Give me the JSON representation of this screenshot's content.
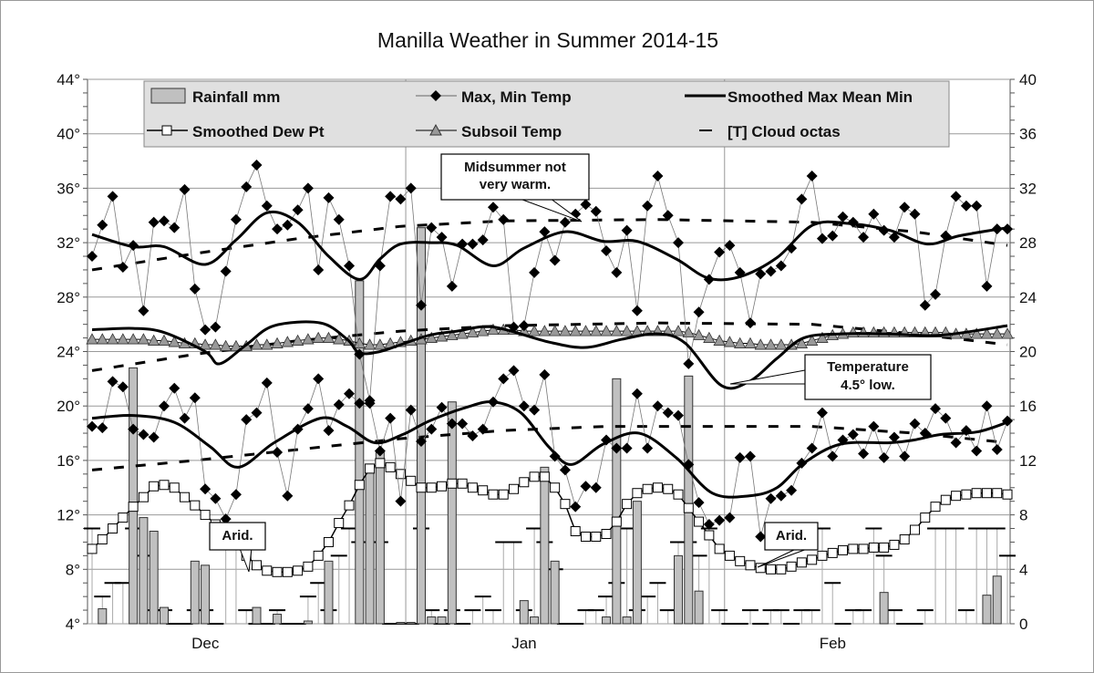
{
  "chart_data": {
    "type": "line",
    "title": "Manilla Weather in Summer 2014-15",
    "x_months": [
      "Dec",
      "Jan",
      "Feb"
    ],
    "days": 90,
    "left_axis": {
      "unit": "°",
      "range": [
        4,
        44
      ],
      "ticks": [
        4,
        8,
        12,
        16,
        20,
        24,
        28,
        32,
        36,
        40,
        44
      ]
    },
    "right_axis": {
      "range": [
        0,
        40
      ],
      "ticks": [
        0,
        4,
        8,
        12,
        16,
        20,
        24,
        28,
        32,
        36,
        40
      ]
    },
    "grid": true,
    "legend_position": "top",
    "legend": [
      "Rainfall mm",
      "Max, Min Temp",
      "Smoothed  Max Mean Min",
      "Smoothed Dew Pt",
      "Subsoil Temp",
      "[T] Cloud octas"
    ],
    "max_temp": [
      31,
      33.3,
      35.4,
      30.2,
      31.8,
      27,
      33.5,
      33.6,
      33.1,
      35.9,
      28.6,
      25.6,
      25.8,
      29.9,
      33.7,
      36.1,
      37.7,
      34.7,
      33,
      33.3,
      34.4,
      36,
      30,
      35.3,
      33.7,
      30.3,
      23.8,
      20.4,
      30.3,
      35.4,
      35.2,
      36,
      27.4,
      33.1,
      32.4,
      28.8,
      31.9,
      31.9,
      32.2,
      34.6,
      33.7,
      25.8,
      25.9,
      29.8,
      32.8,
      30.7,
      33.5,
      34.1,
      34.8,
      34.3,
      31.4,
      29.8,
      32.9,
      27,
      34.7,
      36.9,
      34,
      32,
      23.1,
      26.9,
      29.3,
      31.3,
      31.8,
      29.8,
      26.1,
      29.7,
      29.9,
      30.3,
      31.6,
      35.2,
      36.9,
      32.3,
      32.5,
      33.9,
      33.5,
      32.4,
      34.1,
      32.9,
      32.4,
      34.6,
      34.1,
      27.4,
      28.2,
      32.5,
      35.4,
      34.7,
      34.7,
      28.8,
      33,
      33
    ],
    "min_temp": [
      18.5,
      18.4,
      21.8,
      21.4,
      18.3,
      17.9,
      17.7,
      20,
      21.3,
      19.1,
      20.6,
      13.9,
      13.2,
      11.7,
      13.5,
      19,
      19.5,
      21.7,
      16.6,
      13.4,
      18.3,
      19.8,
      22,
      18.2,
      20.1,
      20.9,
      20.2,
      20.2,
      16.7,
      19.1,
      13,
      19.7,
      17.4,
      18.3,
      19.9,
      18.7,
      18.7,
      17.8,
      18.3,
      20.3,
      22,
      22.6,
      20,
      19.7,
      22.3,
      16.3,
      15.3,
      12.6,
      14.1,
      14,
      17.5,
      16.9,
      16.9,
      20.9,
      16.9,
      20,
      19.5,
      19.3,
      15.7,
      12.9,
      11.3,
      11.6,
      11.8,
      16.2,
      16.3,
      10.4,
      13.2,
      13.4,
      13.8,
      15.8,
      16.9,
      19.5,
      16.3,
      17.5,
      17.9,
      16.5,
      18.5,
      16.2,
      17.7,
      16.3,
      18.7,
      18,
      19.8,
      19.1,
      17.3,
      18.2,
      16.7,
      20,
      16.8,
      18.9
    ],
    "smoothed_max": [
      [
        0,
        32.6
      ],
      [
        4,
        31.7
      ],
      [
        7,
        31.7
      ],
      [
        11,
        30.4
      ],
      [
        14,
        32.2
      ],
      [
        17,
        34.2
      ],
      [
        20,
        33.5
      ],
      [
        23,
        31
      ],
      [
        26,
        29.3
      ],
      [
        28,
        30.8
      ],
      [
        30,
        31.9
      ],
      [
        33,
        32
      ],
      [
        35.5,
        31.8
      ],
      [
        39,
        30.3
      ],
      [
        42,
        31.6
      ],
      [
        46,
        32.8
      ],
      [
        49.7,
        32.1
      ],
      [
        53,
        32.1
      ],
      [
        56.8,
        30.8
      ],
      [
        59.9,
        29.4
      ],
      [
        63,
        29.5
      ],
      [
        66.6,
        30.9
      ],
      [
        70.1,
        33.3
      ],
      [
        73.7,
        33.4
      ],
      [
        77.6,
        32.9
      ],
      [
        81.2,
        31.9
      ],
      [
        84.3,
        32.5
      ],
      [
        89,
        33.1
      ]
    ],
    "smoothed_mean": [
      [
        0,
        25.6
      ],
      [
        4,
        25.7
      ],
      [
        7,
        25.4
      ],
      [
        11,
        24
      ],
      [
        12.4,
        23.1
      ],
      [
        15,
        24.5
      ],
      [
        17.7,
        25.9
      ],
      [
        22.2,
        26.1
      ],
      [
        24.8,
        24.9
      ],
      [
        26,
        23.9
      ],
      [
        28,
        24
      ],
      [
        30,
        24.5
      ],
      [
        32.8,
        25.2
      ],
      [
        35.5,
        25.5
      ],
      [
        39,
        25.8
      ],
      [
        44.4,
        24.7
      ],
      [
        48,
        24.3
      ],
      [
        51.5,
        24.9
      ],
      [
        55,
        25.3
      ],
      [
        57.7,
        24.6
      ],
      [
        61.2,
        21.5
      ],
      [
        63.9,
        21.8
      ],
      [
        66.6,
        23.5
      ],
      [
        69.2,
        25
      ],
      [
        72.8,
        25.3
      ],
      [
        77.2,
        25.3
      ],
      [
        82.5,
        25.2
      ],
      [
        89,
        25.9
      ]
    ],
    "smoothed_min": [
      [
        0,
        19.1
      ],
      [
        4,
        19.3
      ],
      [
        8,
        18.8
      ],
      [
        11.5,
        17
      ],
      [
        14.2,
        15.5
      ],
      [
        17.7,
        17.3
      ],
      [
        22.2,
        19.1
      ],
      [
        24.8,
        18.5
      ],
      [
        27.5,
        17.3
      ],
      [
        30.2,
        17.9
      ],
      [
        32.8,
        18.9
      ],
      [
        36.4,
        19.9
      ],
      [
        39,
        20.3
      ],
      [
        41.7,
        19.5
      ],
      [
        44.4,
        17
      ],
      [
        46.6,
        15.7
      ],
      [
        49.7,
        17.2
      ],
      [
        53.2,
        18
      ],
      [
        56.8,
        16.2
      ],
      [
        60.3,
        13.6
      ],
      [
        63.9,
        13.4
      ],
      [
        66.6,
        14
      ],
      [
        69.2,
        15.8
      ],
      [
        72.8,
        17.2
      ],
      [
        77.6,
        17.3
      ],
      [
        79.9,
        17.5
      ],
      [
        82.5,
        17.9
      ],
      [
        86.1,
        18.1
      ],
      [
        89,
        18.8
      ]
    ],
    "normal_dashed": [
      [
        [
          0,
          30
        ],
        [
          10,
          31.2
        ],
        [
          20,
          32.3
        ],
        [
          30,
          33.2
        ],
        [
          40,
          33.6
        ],
        [
          55,
          33.7
        ],
        [
          70,
          33.5
        ],
        [
          80,
          32.8
        ],
        [
          89,
          31.8
        ]
      ],
      [
        [
          0,
          22.6
        ],
        [
          10,
          23.8
        ],
        [
          20,
          24.8
        ],
        [
          30,
          25.5
        ],
        [
          40,
          25.9
        ],
        [
          55,
          26.1
        ],
        [
          70,
          26
        ],
        [
          80,
          25.3
        ],
        [
          89,
          24.5
        ]
      ],
      [
        [
          0,
          15.3
        ],
        [
          10,
          16
        ],
        [
          20,
          16.8
        ],
        [
          30,
          17.6
        ],
        [
          40,
          18.2
        ],
        [
          50,
          18.5
        ],
        [
          70,
          18.5
        ],
        [
          80,
          18
        ],
        [
          89,
          17.3
        ]
      ]
    ],
    "dew_point": [
      9.5,
      10.2,
      11,
      11.8,
      12.6,
      13.3,
      14.1,
      14.2,
      14,
      13.3,
      12.7,
      12,
      11.3,
      10.5,
      9.8,
      9,
      8.3,
      7.9,
      7.8,
      7.8,
      7.9,
      8.2,
      9,
      10,
      11.4,
      12.7,
      14.2,
      15.4,
      15.8,
      15.5,
      15,
      14.5,
      14,
      14,
      14.1,
      14.3,
      14.3,
      14,
      13.8,
      13.5,
      13.5,
      13.9,
      14.4,
      14.8,
      14.8,
      14,
      12.8,
      10.8,
      10.4,
      10.4,
      10.6,
      11.5,
      12.8,
      13.6,
      13.9,
      14,
      13.9,
      13.5,
      12.5,
      11.5,
      10.5,
      9.5,
      9,
      8.6,
      8.3,
      8.1,
      8,
      8,
      8.2,
      8.5,
      8.7,
      9,
      9.2,
      9.4,
      9.5,
      9.5,
      9.6,
      9.6,
      9.8,
      10.2,
      10.9,
      11.8,
      12.6,
      13.1,
      13.4,
      13.5,
      13.6,
      13.6,
      13.6,
      13.5
    ],
    "subsoil": [
      24.9,
      24.9,
      24.9,
      24.9,
      24.9,
      24.9,
      24.8,
      24.8,
      24.7,
      24.6,
      24.6,
      24.5,
      24.5,
      24.4,
      24.4,
      24.4,
      24.5,
      24.5,
      24.6,
      24.7,
      24.8,
      24.9,
      25,
      25,
      24.9,
      24.8,
      24.6,
      24.5,
      24.5,
      24.6,
      24.7,
      24.8,
      24.9,
      25,
      25.1,
      25.2,
      25.3,
      25.4,
      25.5,
      25.6,
      25.6,
      25.6,
      25.5,
      25.5,
      25.5,
      25.5,
      25.5,
      25.5,
      25.5,
      25.5,
      25.5,
      25.5,
      25.5,
      25.5,
      25.5,
      25.5,
      25.5,
      25.5,
      25.4,
      25.2,
      25,
      24.8,
      24.7,
      24.6,
      24.6,
      24.5,
      24.5,
      24.5,
      24.5,
      24.6,
      24.8,
      25,
      25.2,
      25.3,
      25.4,
      25.4,
      25.4,
      25.4,
      25.4,
      25.4,
      25.4,
      25.4,
      25.4,
      25.4,
      25.3,
      25.3,
      25.3,
      25.3,
      25.3,
      25.3
    ],
    "rainfall_mm": [
      0,
      1.1,
      0,
      0,
      18.8,
      7.8,
      6.8,
      1.2,
      0,
      0,
      4.6,
      4.3,
      0,
      0,
      0,
      0,
      1.2,
      0,
      0.7,
      0,
      0,
      0.2,
      0,
      4.6,
      0,
      0,
      25.2,
      11.7,
      12.6,
      0,
      0.1,
      0.1,
      29.1,
      0.5,
      0.5,
      16.3,
      0,
      0,
      0,
      0,
      0,
      0,
      1.7,
      0.5,
      11.5,
      4.6,
      0,
      0,
      0,
      0,
      0.5,
      18,
      0.5,
      9,
      0,
      0,
      0,
      5,
      18.2,
      2.4,
      0,
      0,
      0,
      0,
      0,
      0,
      0,
      0,
      0,
      0,
      0,
      0,
      0,
      0,
      0,
      0,
      0,
      2.3,
      0,
      0,
      0,
      0,
      0,
      0,
      0,
      0,
      0,
      2.1,
      3.5,
      0
    ],
    "cloud_octas": [
      7,
      2,
      3,
      3,
      7,
      5,
      1,
      1,
      0,
      0,
      1,
      1,
      0,
      7,
      7,
      1,
      0,
      0,
      1,
      0,
      0,
      2,
      3,
      1,
      5,
      7,
      6,
      6,
      6,
      0,
      0,
      0,
      7,
      1,
      0,
      1,
      0,
      1,
      2,
      1,
      6,
      6,
      1,
      7,
      6,
      4,
      0,
      0,
      1,
      1,
      2,
      3,
      7,
      1,
      2,
      3,
      1,
      6,
      6,
      5,
      7,
      1,
      0,
      0,
      1,
      0,
      1,
      1,
      0,
      1,
      1,
      7,
      3,
      0,
      1,
      1,
      7,
      5,
      1,
      0,
      0,
      1,
      7,
      7,
      7,
      1,
      7,
      7,
      7,
      5
    ],
    "annotations": [
      "Midsummer not very warm.",
      "Temperature 4.5° low.",
      "Arid.",
      "Arid."
    ]
  },
  "colors": {
    "bar": "#c0c0c0",
    "subsoil": "#999999",
    "line": "#000000",
    "grid": "#999999",
    "legend_bg": "#e0e0e0"
  }
}
